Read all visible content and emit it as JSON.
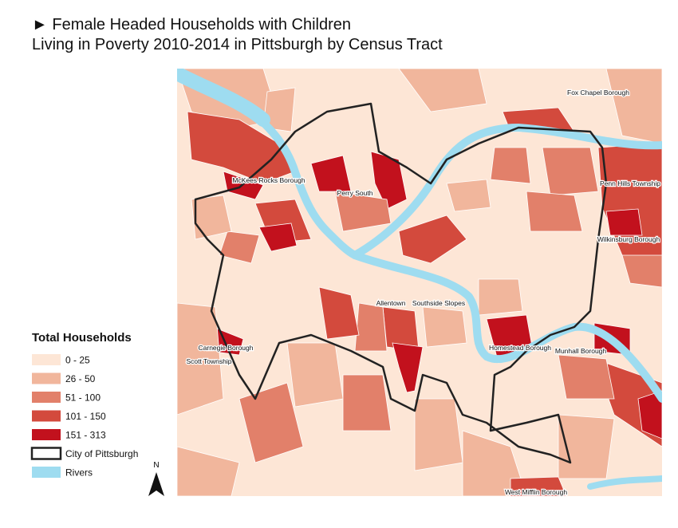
{
  "title": [
    "► Female Headed Households with Children",
    "Living in Poverty 2010-2014 in Pittsburgh by Census Tract"
  ],
  "legend": {
    "title": "Total Households",
    "items": [
      {
        "label": "0 - 25",
        "fill": "#fde6d6"
      },
      {
        "label": "26 - 50",
        "fill": "#f1b69c"
      },
      {
        "label": "51 - 100",
        "fill": "#e2806a"
      },
      {
        "label": "101 - 150",
        "fill": "#d34a3d"
      },
      {
        "label": "151 - 313",
        "fill": "#c2111d"
      },
      {
        "label": "City of Pittsburgh",
        "fill": "#ffffff",
        "stroke": "#222222"
      },
      {
        "label": "Rivers",
        "fill": "#9edcf0"
      }
    ]
  },
  "places": [
    "Fox Chapel Borough",
    "McKees Rocks Borough",
    "Perry South",
    "Penn Hills Township",
    "Wilkinsburg Borough",
    "Allentown",
    "Southside Slopes",
    "Homestead Borough",
    "Munhall Borough",
    "Carnegie Borough",
    "Scott Township",
    "West Mifflin Borough"
  ],
  "north": "N"
}
